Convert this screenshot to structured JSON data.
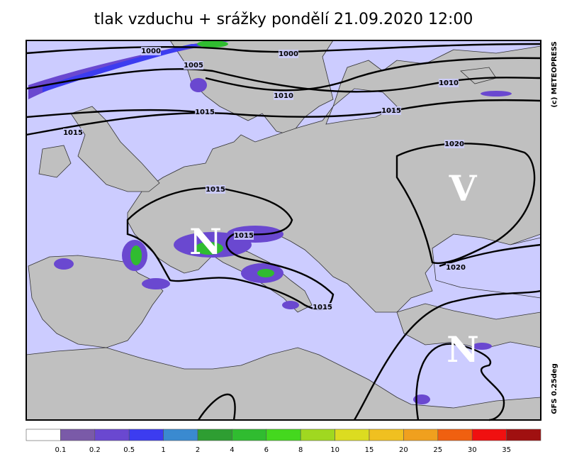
{
  "title": "tlak vzduchu + srážky pondělí 21.09.2020 12:00",
  "copyright": "(c) METEOPRESS",
  "model": "GFS 0.25deg",
  "isobar_labels": [
    "1000",
    "1000",
    "1005",
    "1010",
    "1010",
    "1015",
    "1015",
    "1015",
    "1020",
    "1015",
    "1015",
    "1020",
    "1015"
  ],
  "pressure_centers": [
    "V",
    "N",
    "N"
  ],
  "legend": {
    "colors": [
      "#ffffff",
      "#7a5aa8",
      "#6a48d0",
      "#3c3cf0",
      "#3a8ad0",
      "#2e9e32",
      "#30bc30",
      "#44d81e",
      "#a0d820",
      "#dcdc20",
      "#f0c020",
      "#f0a01e",
      "#f06010",
      "#f01010",
      "#a01010"
    ],
    "labels": [
      0.1,
      0.2,
      0.5,
      1,
      2,
      4,
      6,
      8,
      10,
      15,
      20,
      25,
      30,
      35
    ]
  }
}
